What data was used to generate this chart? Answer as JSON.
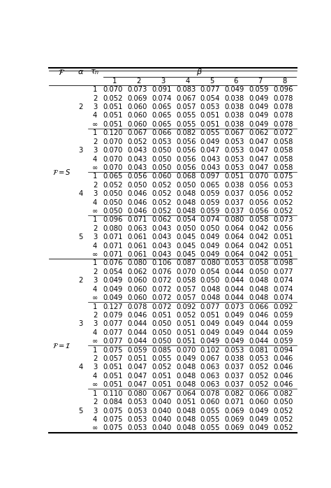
{
  "col_headers": [
    "1",
    "2",
    "3",
    "4",
    "5",
    "6",
    "7",
    "8"
  ],
  "sections": [
    {
      "F_label": "$\\mathcal{F} = S$",
      "alpha_groups": [
        {
          "alpha": "2",
          "rows": [
            {
              "tau": "1",
              "vals": [
                0.07,
                0.073,
                0.091,
                0.083,
                0.077,
                0.049,
                0.059,
                0.096
              ]
            },
            {
              "tau": "2",
              "vals": [
                0.052,
                0.069,
                0.074,
                0.067,
                0.054,
                0.038,
                0.049,
                0.078
              ]
            },
            {
              "tau": "3",
              "vals": [
                0.051,
                0.06,
                0.065,
                0.057,
                0.053,
                0.038,
                0.049,
                0.078
              ]
            },
            {
              "tau": "4",
              "vals": [
                0.051,
                0.06,
                0.065,
                0.055,
                0.051,
                0.038,
                0.049,
                0.078
              ]
            },
            {
              "tau": "∞",
              "vals": [
                0.051,
                0.06,
                0.065,
                0.055,
                0.051,
                0.038,
                0.049,
                0.078
              ]
            }
          ]
        },
        {
          "alpha": "3",
          "rows": [
            {
              "tau": "1",
              "vals": [
                0.12,
                0.067,
                0.066,
                0.082,
                0.055,
                0.067,
                0.062,
                0.072
              ]
            },
            {
              "tau": "2",
              "vals": [
                0.07,
                0.052,
                0.053,
                0.056,
                0.049,
                0.053,
                0.047,
                0.058
              ]
            },
            {
              "tau": "3",
              "vals": [
                0.07,
                0.043,
                0.05,
                0.056,
                0.047,
                0.053,
                0.047,
                0.058
              ]
            },
            {
              "tau": "4",
              "vals": [
                0.07,
                0.043,
                0.05,
                0.056,
                0.043,
                0.053,
                0.047,
                0.058
              ]
            },
            {
              "tau": "∞",
              "vals": [
                0.07,
                0.043,
                0.05,
                0.056,
                0.043,
                0.053,
                0.047,
                0.058
              ]
            }
          ]
        },
        {
          "alpha": "4",
          "rows": [
            {
              "tau": "1",
              "vals": [
                0.065,
                0.056,
                0.06,
                0.068,
                0.097,
                0.051,
                0.07,
                0.075
              ]
            },
            {
              "tau": "2",
              "vals": [
                0.052,
                0.05,
                0.052,
                0.05,
                0.065,
                0.038,
                0.056,
                0.053
              ]
            },
            {
              "tau": "3",
              "vals": [
                0.05,
                0.046,
                0.052,
                0.048,
                0.059,
                0.037,
                0.056,
                0.052
              ]
            },
            {
              "tau": "4",
              "vals": [
                0.05,
                0.046,
                0.052,
                0.048,
                0.059,
                0.037,
                0.056,
                0.052
              ]
            },
            {
              "tau": "∞",
              "vals": [
                0.05,
                0.046,
                0.052,
                0.048,
                0.059,
                0.037,
                0.056,
                0.052
              ]
            }
          ]
        },
        {
          "alpha": "5",
          "rows": [
            {
              "tau": "1",
              "vals": [
                0.096,
                0.071,
                0.062,
                0.054,
                0.074,
                0.08,
                0.058,
                0.073
              ]
            },
            {
              "tau": "2",
              "vals": [
                0.08,
                0.063,
                0.043,
                0.05,
                0.05,
                0.064,
                0.042,
                0.056
              ]
            },
            {
              "tau": "3",
              "vals": [
                0.071,
                0.061,
                0.043,
                0.045,
                0.049,
                0.064,
                0.042,
                0.051
              ]
            },
            {
              "tau": "4",
              "vals": [
                0.071,
                0.061,
                0.043,
                0.045,
                0.049,
                0.064,
                0.042,
                0.051
              ]
            },
            {
              "tau": "∞",
              "vals": [
                0.071,
                0.061,
                0.043,
                0.045,
                0.049,
                0.064,
                0.042,
                0.051
              ]
            }
          ]
        }
      ]
    },
    {
      "F_label": "$\\mathcal{F} = \\mathcal{I}$",
      "alpha_groups": [
        {
          "alpha": "2",
          "rows": [
            {
              "tau": "1",
              "vals": [
                0.076,
                0.08,
                0.106,
                0.087,
                0.08,
                0.053,
                0.058,
                0.098
              ]
            },
            {
              "tau": "2",
              "vals": [
                0.054,
                0.062,
                0.076,
                0.07,
                0.054,
                0.044,
                0.05,
                0.077
              ]
            },
            {
              "tau": "3",
              "vals": [
                0.049,
                0.06,
                0.072,
                0.058,
                0.05,
                0.044,
                0.048,
                0.074
              ]
            },
            {
              "tau": "4",
              "vals": [
                0.049,
                0.06,
                0.072,
                0.057,
                0.048,
                0.044,
                0.048,
                0.074
              ]
            },
            {
              "tau": "∞",
              "vals": [
                0.049,
                0.06,
                0.072,
                0.057,
                0.048,
                0.044,
                0.048,
                0.074
              ]
            }
          ]
        },
        {
          "alpha": "3",
          "rows": [
            {
              "tau": "1",
              "vals": [
                0.127,
                0.078,
                0.072,
                0.092,
                0.077,
                0.073,
                0.066,
                0.092
              ]
            },
            {
              "tau": "2",
              "vals": [
                0.079,
                0.046,
                0.051,
                0.052,
                0.051,
                0.049,
                0.046,
                0.059
              ]
            },
            {
              "tau": "3",
              "vals": [
                0.077,
                0.044,
                0.05,
                0.051,
                0.049,
                0.049,
                0.044,
                0.059
              ]
            },
            {
              "tau": "4",
              "vals": [
                0.077,
                0.044,
                0.05,
                0.051,
                0.049,
                0.049,
                0.044,
                0.059
              ]
            },
            {
              "tau": "∞",
              "vals": [
                0.077,
                0.044,
                0.05,
                0.051,
                0.049,
                0.049,
                0.044,
                0.059
              ]
            }
          ]
        },
        {
          "alpha": "4",
          "rows": [
            {
              "tau": "1",
              "vals": [
                0.075,
                0.059,
                0.085,
                0.07,
                0.102,
                0.053,
                0.081,
                0.094
              ]
            },
            {
              "tau": "2",
              "vals": [
                0.057,
                0.051,
                0.055,
                0.049,
                0.067,
                0.038,
                0.053,
                0.046
              ]
            },
            {
              "tau": "3",
              "vals": [
                0.051,
                0.047,
                0.052,
                0.048,
                0.063,
                0.037,
                0.052,
                0.046
              ]
            },
            {
              "tau": "4",
              "vals": [
                0.051,
                0.047,
                0.051,
                0.048,
                0.063,
                0.037,
                0.052,
                0.046
              ]
            },
            {
              "tau": "∞",
              "vals": [
                0.051,
                0.047,
                0.051,
                0.048,
                0.063,
                0.037,
                0.052,
                0.046
              ]
            }
          ]
        },
        {
          "alpha": "5",
          "rows": [
            {
              "tau": "1",
              "vals": [
                0.11,
                0.08,
                0.067,
                0.064,
                0.078,
                0.082,
                0.066,
                0.082
              ]
            },
            {
              "tau": "2",
              "vals": [
                0.084,
                0.053,
                0.04,
                0.051,
                0.06,
                0.071,
                0.06,
                0.05
              ]
            },
            {
              "tau": "3",
              "vals": [
                0.075,
                0.053,
                0.04,
                0.048,
                0.055,
                0.069,
                0.049,
                0.052
              ]
            },
            {
              "tau": "4",
              "vals": [
                0.075,
                0.053,
                0.04,
                0.048,
                0.055,
                0.069,
                0.049,
                0.052
              ]
            },
            {
              "tau": "∞",
              "vals": [
                0.075,
                0.053,
                0.04,
                0.048,
                0.055,
                0.069,
                0.049,
                0.052
              ]
            }
          ]
        }
      ]
    }
  ]
}
